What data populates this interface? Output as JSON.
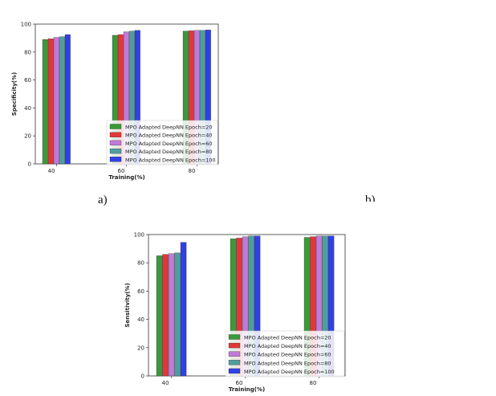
{
  "panel_labels": {
    "a": "a)",
    "b": "b)"
  },
  "chart_data": [
    {
      "type": "bar",
      "categories": [
        "40",
        "60",
        "80"
      ],
      "xlabel": "Training(%)",
      "ylabel": "Specificity(%)",
      "ylim": [
        0,
        100
      ],
      "yticks": [
        "0",
        "20",
        "40",
        "60",
        "80",
        "100"
      ],
      "legend_placement": "lower-right",
      "grid": false,
      "series": [
        {
          "name": "MPO Adapted DeepNN Epoch=20",
          "color": "#3a9a3a",
          "values": [
            89,
            92,
            95
          ]
        },
        {
          "name": "MPO Adapted DeepNN Epoch=40",
          "color": "#e03838",
          "values": [
            89.5,
            92.5,
            95.2
          ]
        },
        {
          "name": "MPO Adapted DeepNN Epoch=60",
          "color": "#c07ad8",
          "values": [
            90.5,
            94.5,
            95.5
          ]
        },
        {
          "name": "MPO Adapted DeepNN Epoch=80",
          "color": "#4f9e9e",
          "values": [
            91,
            95,
            95.5
          ]
        },
        {
          "name": "MPO Adapted DeepNN Epoch=100",
          "color": "#3040e8",
          "values": [
            92.5,
            95.5,
            95.8
          ]
        }
      ]
    },
    {
      "type": "bar",
      "categories": [
        "40",
        "60",
        "80"
      ],
      "xlabel": "Training(%)",
      "ylabel": "Sensitivity(%)",
      "ylim": [
        0,
        100
      ],
      "yticks": [
        "0",
        "20",
        "40",
        "60",
        "80",
        "100"
      ],
      "legend_placement": "lower-right",
      "grid": false,
      "series": [
        {
          "name": "MPO Adapted DeepNN Epoch=20",
          "color": "#3a9a3a",
          "values": [
            85,
            97,
            98
          ]
        },
        {
          "name": "MPO Adapted DeepNN Epoch=40",
          "color": "#e03838",
          "values": [
            86,
            97.5,
            98.5
          ]
        },
        {
          "name": "MPO Adapted DeepNN Epoch=60",
          "color": "#c07ad8",
          "values": [
            86.5,
            98.5,
            99
          ]
        },
        {
          "name": "MPO Adapted DeepNN Epoch=80",
          "color": "#4f9e9e",
          "values": [
            87,
            99,
            99
          ]
        },
        {
          "name": "MPO Adapted DeepNN Epoch=100",
          "color": "#3040e8",
          "values": [
            94.5,
            99,
            99
          ]
        }
      ]
    }
  ]
}
